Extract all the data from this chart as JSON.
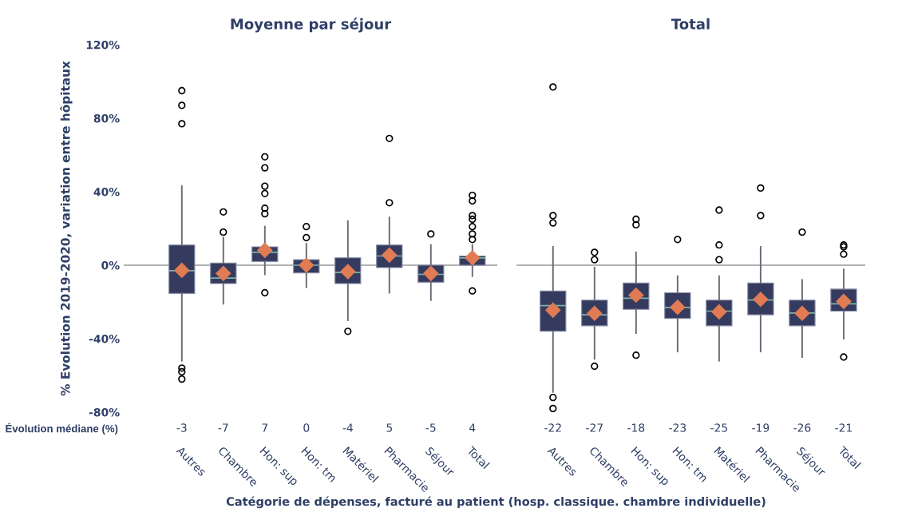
{
  "chart_data": [
    {
      "type": "box",
      "title": "Moyenne par séjour",
      "ylabel": "% Evolution 2019-2020, variation entre hôpitaux",
      "xlabel": "Catégorie de dépenses, facturé au patient (hosp. classique. chambre individuelle)",
      "annotations": [
        "Évolution médiane (%)"
      ],
      "categories": [
        "Autres",
        "Chambre",
        "Hon: sup",
        "Hon: tm",
        "Matériel",
        "Pharmacie",
        "Séjour",
        "Total"
      ],
      "series": [
        {
          "color": "#353b5e",
          "value_labels": [
            "-3",
            "-7",
            "7",
            "0",
            "-4",
            "5",
            "-5",
            "4"
          ],
          "boxes": [
            {
              "low": -52,
              "q1": -15.4,
              "median": -3,
              "q3": 11,
              "high": 43,
              "mean": -2.8,
              "outliers": [
                95,
                87,
                77,
                -56,
                -58,
                -62
              ]
            },
            {
              "low": -21,
              "q1": -10,
              "median": -7,
              "q3": 1.2,
              "high": 15,
              "mean": -4.5,
              "outliers": [
                29,
                18
              ]
            },
            {
              "low": -5,
              "q1": 2,
              "median": 7,
              "q3": 10,
              "high": 21,
              "mean": 8.1,
              "outliers": [
                59,
                53,
                43,
                39,
                31,
                28,
                -15
              ]
            },
            {
              "low": -12,
              "q1": -4.2,
              "median": 0,
              "q3": 3,
              "high": 11.7,
              "mean": 0,
              "outliers": [
                21,
                15
              ]
            },
            {
              "low": -30,
              "q1": -10,
              "median": -4,
              "q3": 4,
              "high": 24,
              "mean": -3.5,
              "outliers": [
                -36
              ]
            },
            {
              "low": -15,
              "q1": -1.3,
              "median": 5,
              "q3": 11,
              "high": 26,
              "mean": 5.5,
              "outliers": [
                69,
                34
              ]
            },
            {
              "low": -19,
              "q1": -9.3,
              "median": -5,
              "q3": 0,
              "high": 11,
              "mean": -4.5,
              "outliers": [
                17
              ]
            },
            {
              "low": -6,
              "q1": 0,
              "median": 4,
              "q3": 5,
              "high": 11,
              "mean": 4,
              "outliers": [
                38,
                35,
                27,
                25,
                21,
                17,
                14,
                -14
              ]
            }
          ]
        }
      ],
      "ylim": [
        -80,
        120
      ],
      "yticks": [
        {
          "value": -80,
          "label": "-80%"
        },
        {
          "value": -40,
          "label": "-40%"
        },
        {
          "value": 0,
          "label": "0%"
        },
        {
          "value": 40,
          "label": "40%"
        },
        {
          "value": 80,
          "label": "80%"
        },
        {
          "value": 120,
          "label": "120%"
        }
      ],
      "ref_lines": [
        {
          "axis": "y",
          "value": 0,
          "color": "#9a9a9a"
        }
      ]
    },
    {
      "type": "box",
      "title": "Total",
      "categories": [
        "Autres",
        "Chambre",
        "Hon: sup",
        "Hon: tm",
        "Matériel",
        "Pharmacie",
        "Séjour",
        "Total"
      ],
      "series": [
        {
          "color": "#353b5e",
          "value_labels": [
            "-22",
            "-27",
            "-18",
            "-23",
            "-25",
            "-19",
            "-26",
            "-21"
          ],
          "boxes": [
            {
              "low": -69,
              "q1": -36,
              "median": -22,
              "q3": -14,
              "high": 10,
              "mean": -24.5,
              "outliers": [
                97,
                27,
                23,
                -72,
                -78
              ]
            },
            {
              "low": -51,
              "q1": -33,
              "median": -27,
              "q3": -19,
              "high": -1.3,
              "mean": -26.2,
              "outliers": [
                7,
                3,
                -55
              ]
            },
            {
              "low": -37,
              "q1": -24,
              "median": -18,
              "q3": -9.7,
              "high": 7,
              "mean": -16.3,
              "outliers": [
                25,
                22,
                -49
              ]
            },
            {
              "low": -47,
              "q1": -29,
              "median": -23,
              "q3": -15,
              "high": -6,
              "mean": -22.9,
              "outliers": [
                14
              ]
            },
            {
              "low": -52,
              "q1": -33,
              "median": -25,
              "q3": -19,
              "high": -6,
              "mean": -25.4,
              "outliers": [
                30,
                11,
                3
              ]
            },
            {
              "low": -47,
              "q1": -27,
              "median": -19,
              "q3": -9.7,
              "high": 10,
              "mean": -18.6,
              "outliers": [
                42,
                27
              ]
            },
            {
              "low": -50,
              "q1": -33,
              "median": -26,
              "q3": -19,
              "high": -8,
              "mean": -26.2,
              "outliers": [
                18
              ]
            },
            {
              "low": -40,
              "q1": -25,
              "median": -21,
              "q3": -13,
              "high": -2.3,
              "mean": -19.7,
              "outliers": [
                11,
                10,
                6,
                -50
              ]
            }
          ]
        }
      ],
      "ylim": [
        -80,
        120
      ],
      "ref_lines": [
        {
          "axis": "y",
          "value": 0,
          "color": "#9a9a9a"
        }
      ],
      "tick_labels": "x"
    }
  ]
}
